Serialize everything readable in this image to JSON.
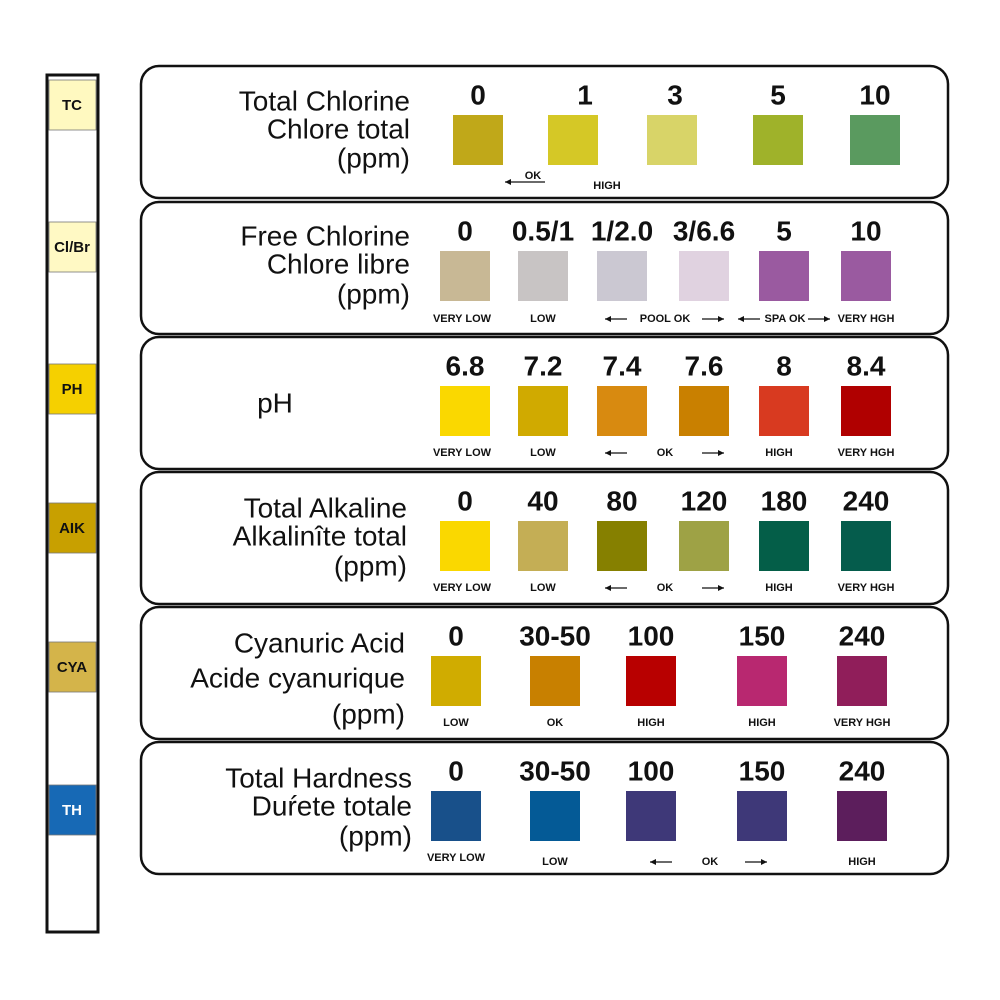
{
  "strip": {
    "labels": [
      "TC",
      "Cl/Br",
      "PH",
      "AIK",
      "CYA",
      "TH"
    ],
    "colors": [
      "#fff9c0",
      "#fff9c4",
      "#f5d000",
      "#c8a000",
      "#d4b44a",
      "#1769b5"
    ]
  },
  "panels": [
    {
      "title": [
        "Total Chlorine",
        "Chlore total",
        "(ppm)"
      ],
      "values": [
        "0",
        "1",
        "3",
        "5",
        "10"
      ],
      "colors": [
        "#c0a819",
        "#d5c826",
        "#d8d468",
        "#9fb22a",
        "#5a9a5f"
      ],
      "notes": [
        "OK",
        "HIGH"
      ]
    },
    {
      "title": [
        "Free Chlorine",
        "Chlore libre",
        "(ppm)"
      ],
      "values": [
        "0",
        "0.5/1",
        "1/2.0",
        "3/6.6",
        "5",
        "10"
      ],
      "colors": [
        "#c8b895",
        "#c8c4c4",
        "#cbc8d2",
        "#e0d2e0",
        "#9a5aa0",
        "#9a5aa0"
      ],
      "notes": [
        "VERY LOW",
        "LOW",
        "POOL OK",
        "SPA OK",
        "VERY HGH"
      ]
    },
    {
      "title": [
        "pH"
      ],
      "values": [
        "6.8",
        "7.2",
        "7.4",
        "7.6",
        "8",
        "8.4"
      ],
      "colors": [
        "#fad800",
        "#d0aa00",
        "#d88a10",
        "#c98000",
        "#d83a20",
        "#b00000"
      ],
      "notes": [
        "VERY LOW",
        "LOW",
        "OK",
        "HIGH",
        "VERY HGH"
      ]
    },
    {
      "title": [
        "Total Alkaline",
        "Alkalinîte total",
        "(ppm)"
      ],
      "values": [
        "0",
        "40",
        "80",
        "120",
        "180",
        "240"
      ],
      "colors": [
        "#fad800",
        "#c4ae55",
        "#868000",
        "#9ea245",
        "#045e48",
        "#055c4c"
      ],
      "notes": [
        "VERY LOW",
        "LOW",
        "OK",
        "HIGH",
        "VERY HGH"
      ]
    },
    {
      "title": [
        "Cyanuric Acid",
        "Acide cyanurique",
        "(ppm)"
      ],
      "values": [
        "0",
        "30-50",
        "100",
        "150",
        "240"
      ],
      "colors": [
        "#d0ac00",
        "#c88000",
        "#b80000",
        "#b82870",
        "#901e5a"
      ],
      "notes": [
        "LOW",
        "OK",
        "HIGH",
        "HIGH",
        "VERY HGH"
      ]
    },
    {
      "title": [
        "Total Hardness",
        "Duŕete totale",
        "(ppm)"
      ],
      "values": [
        "0",
        "30-50",
        "100",
        "150",
        "240"
      ],
      "colors": [
        "#18508a",
        "#045a96",
        "#3e3878",
        "#3e3878",
        "#5c1e5c"
      ],
      "notes": [
        "VERY LOW",
        "LOW",
        "OK",
        "HIGH"
      ]
    }
  ]
}
